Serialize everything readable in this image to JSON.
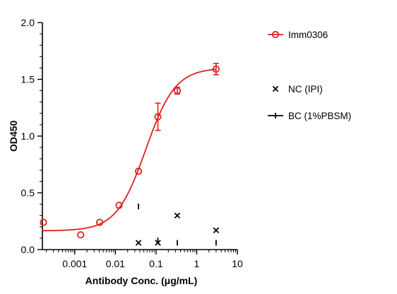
{
  "chart_data": {
    "type": "scatter",
    "xlabel": "Antibody Conc. (μg/mL)",
    "ylabel": "OD450",
    "x_scale": "log",
    "xlim": [
      0.00016,
      10
    ],
    "ylim": [
      0,
      2.0
    ],
    "x_ticks": [
      0.001,
      0.01,
      0.1,
      1,
      10
    ],
    "x_tick_labels": [
      "0.001",
      "0.01",
      "0.1",
      "1",
      "10"
    ],
    "y_ticks": [
      0,
      0.5,
      1.0,
      1.5,
      2.0
    ],
    "y_tick_labels": [
      "0.0",
      "0.5",
      "1.0",
      "1.5",
      "2.0"
    ],
    "grid": false,
    "legend_position": "right",
    "series": [
      {
        "name": "Imm0306",
        "color": "#e02020",
        "marker": "open-circle",
        "fit": "sigmoidal 4PL",
        "fit_params": {
          "bottom": 0.165,
          "top": 1.6,
          "ec50": 0.056,
          "hill": 1.2
        },
        "points": [
          {
            "x": 0.00017,
            "y": 0.24,
            "err": 0
          },
          {
            "x": 0.0014,
            "y": 0.13,
            "err": 0
          },
          {
            "x": 0.0041,
            "y": 0.24,
            "err": 0
          },
          {
            "x": 0.0123,
            "y": 0.39,
            "err": 0
          },
          {
            "x": 0.037,
            "y": 0.69,
            "err": 0
          },
          {
            "x": 0.111,
            "y": 1.17,
            "err": 0.12
          },
          {
            "x": 0.333,
            "y": 1.4,
            "err": 0.03
          },
          {
            "x": 3.0,
            "y": 1.59,
            "err": 0.05
          }
        ]
      },
      {
        "name": "NC (IPI)",
        "color": "#000000",
        "marker": "x",
        "points": [
          {
            "x": 0.037,
            "y": 0.06
          },
          {
            "x": 0.111,
            "y": 0.06
          },
          {
            "x": 0.333,
            "y": 0.3
          },
          {
            "x": 3.0,
            "y": 0.17
          }
        ]
      },
      {
        "name": "BC (1%PBSM)",
        "color": "#000000",
        "marker": "vbar",
        "points": [
          {
            "x": 0.037,
            "y": 0.38
          },
          {
            "x": 0.111,
            "y": 0.08
          },
          {
            "x": 0.333,
            "y": 0.06
          },
          {
            "x": 3.0,
            "y": 0.06
          }
        ]
      }
    ]
  }
}
